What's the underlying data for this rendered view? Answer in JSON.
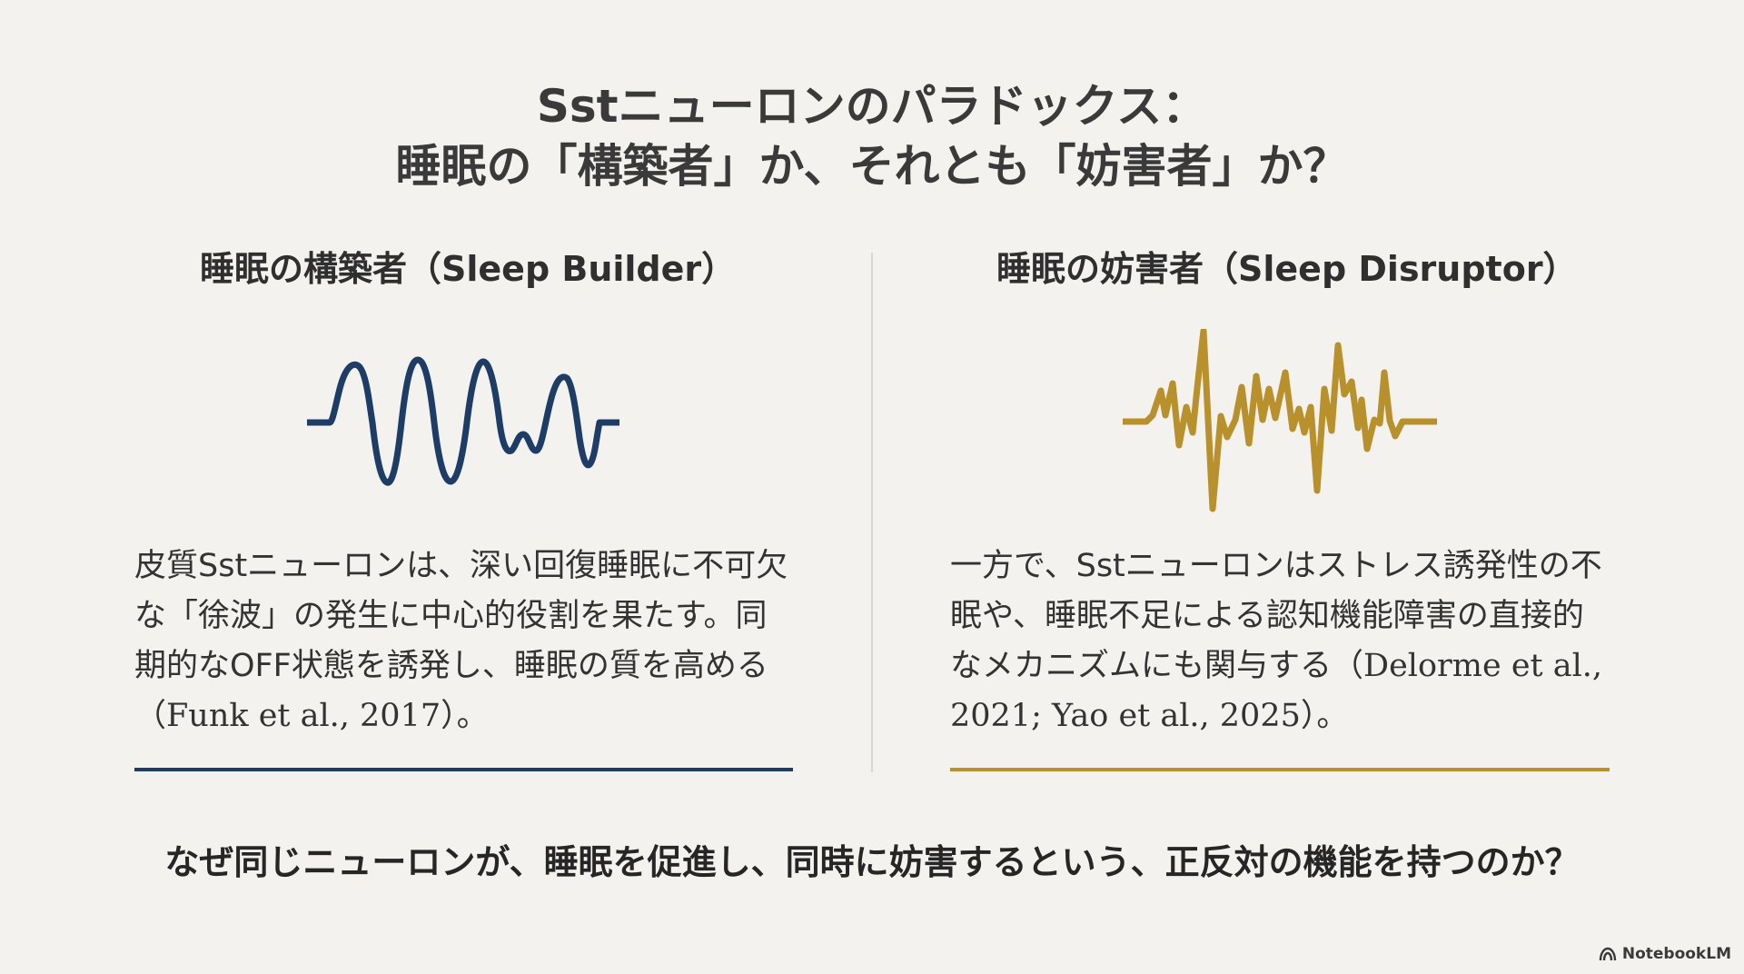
{
  "title": {
    "line1": "Sstニューロンのパラドックス：",
    "line2": "睡眠の「構築者」か、それとも「妨害者」か？"
  },
  "left": {
    "heading": "睡眠の構築者（Sleep Builder）",
    "body_main": "皮質Sstニューロンは、深い回復睡眠に不可欠な「徐波」の発生に中心的役割を果たす。同期的なOFF状態を誘発し、睡眠の質を高める",
    "citation": "（Funk et al., 2017）。",
    "accent_color": "#1d3c66"
  },
  "right": {
    "heading": "睡眠の妨害者（Sleep Disruptor）",
    "body_main": "一方で、Sstニューロンはストレス誘発性の不眠や、睡眠不足による認知機能障害の直接的なメカニズムにも関与する",
    "citation": "（Delorme et al., 2021; Yao et al., 2025）。",
    "accent_color": "#b8902c"
  },
  "question": "なぜ同じニューロンが、睡眠を促進し、同時に妨害するという、正反対の機能を持つのか？",
  "brand": "NotebookLM"
}
